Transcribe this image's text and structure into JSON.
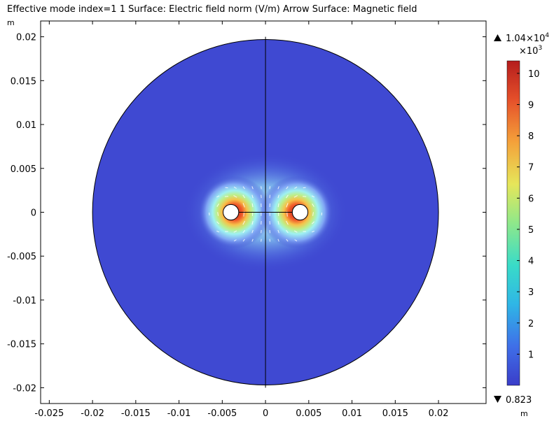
{
  "chart_data": {
    "type": "heatmap",
    "title": "Effective mode index=1 1  Surface: Electric field norm (V/m)  Arrow Surface: Magnetic field",
    "xlabel": "m",
    "ylabel": "m",
    "xlim": [
      -0.026,
      0.0255
    ],
    "ylim": [
      -0.0218,
      0.0218
    ],
    "xticks": [
      -0.025,
      -0.02,
      -0.015,
      -0.01,
      -0.005,
      0,
      0.005,
      0.01,
      0.015,
      0.02
    ],
    "xtick_labels": [
      "-0.025",
      "-0.02",
      "-0.015",
      "-0.01",
      "-0.005",
      "0",
      "0.005",
      "0.01",
      "0.015",
      "0.02"
    ],
    "yticks": [
      0.02,
      0.015,
      0.01,
      0.005,
      0,
      -0.005,
      -0.01,
      -0.015,
      -0.02
    ],
    "ytick_labels": [
      "0.02",
      "0.015",
      "0.01",
      "0.005",
      "0",
      "-0.005",
      "-0.01",
      "-0.015",
      "-0.02"
    ],
    "domain_circle": {
      "center": [
        0,
        0
      ],
      "radius": 0.02
    },
    "conductors": [
      {
        "center": [
          -0.004,
          0
        ],
        "radius": 0.0009
      },
      {
        "center": [
          0.004,
          0
        ],
        "radius": 0.0009
      }
    ],
    "colorbar": {
      "max_label": "1.04×10",
      "max_exp": "4",
      "scale_label": "×10",
      "scale_exp": "3",
      "min_label": "0.823",
      "ticks": [
        "1",
        "2",
        "3",
        "4",
        "5",
        "6",
        "7",
        "8",
        "9",
        "10"
      ],
      "tick_values": [
        1,
        2,
        3,
        4,
        5,
        6,
        7,
        8,
        9,
        10
      ],
      "range": [
        0.000823,
        10.4
      ],
      "colormap": "rainbow",
      "colors": [
        "#3a3dc9",
        "#3f6fe8",
        "#2fb6e6",
        "#39dbc8",
        "#8fe88a",
        "#e6e65a",
        "#f4a13a",
        "#e5502a",
        "#b51d1d"
      ]
    },
    "arrow_field": "Magnetic field",
    "surface_field": "Electric field norm (V/m)",
    "grid": false
  }
}
